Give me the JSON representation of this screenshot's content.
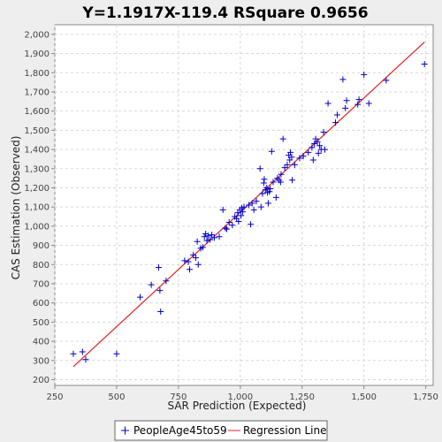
{
  "chart_data": {
    "type": "scatter",
    "title": "Y=1.1917X-119.4    RSquare 0.9656",
    "xlabel": "SAR Prediction (Expected)",
    "ylabel": "CAS Estimation (Observed)",
    "xlim": [
      250,
      1780
    ],
    "ylim": [
      170,
      2050
    ],
    "xticks": [
      250,
      500,
      750,
      1000,
      1250,
      1500,
      1750
    ],
    "xtick_labels": [
      "250",
      "500",
      "750",
      "1,000",
      "1,250",
      "1,500",
      "1,750"
    ],
    "yticks": [
      200,
      300,
      400,
      500,
      600,
      700,
      800,
      900,
      1000,
      1100,
      1200,
      1300,
      1400,
      1500,
      1600,
      1700,
      1800,
      1900,
      2000
    ],
    "ytick_labels": [
      "200",
      "300",
      "400",
      "500",
      "600",
      "700",
      "800",
      "900",
      "1,000",
      "1,100",
      "1,200",
      "1,300",
      "1,400",
      "1,500",
      "1,600",
      "1,700",
      "1,800",
      "1,900",
      "2,000"
    ],
    "grid": true,
    "legend_position": "bottom",
    "series": [
      {
        "name": "PeopleAge45to59",
        "kind": "scatter",
        "marker": "plus",
        "color": "#0000CC",
        "points": [
          [
            325,
            335
          ],
          [
            362,
            345
          ],
          [
            375,
            305
          ],
          [
            500,
            335
          ],
          [
            595,
            630
          ],
          [
            640,
            695
          ],
          [
            670,
            785
          ],
          [
            675,
            665
          ],
          [
            678,
            555
          ],
          [
            700,
            715
          ],
          [
            775,
            820
          ],
          [
            790,
            815
          ],
          [
            795,
            775
          ],
          [
            810,
            850
          ],
          [
            820,
            835
          ],
          [
            826,
            920
          ],
          [
            830,
            800
          ],
          [
            840,
            885
          ],
          [
            848,
            890
          ],
          [
            855,
            945
          ],
          [
            860,
            960
          ],
          [
            865,
            925
          ],
          [
            870,
            950
          ],
          [
            878,
            930
          ],
          [
            885,
            955
          ],
          [
            895,
            940
          ],
          [
            915,
            945
          ],
          [
            930,
            1085
          ],
          [
            940,
            990
          ],
          [
            945,
            985
          ],
          [
            955,
            1020
          ],
          [
            968,
            1005
          ],
          [
            978,
            1050
          ],
          [
            985,
            1040
          ],
          [
            990,
            1070
          ],
          [
            993,
            1025
          ],
          [
            998,
            1085
          ],
          [
            1003,
            1055
          ],
          [
            1006,
            1095
          ],
          [
            1010,
            1075
          ],
          [
            1015,
            1100
          ],
          [
            1035,
            1110
          ],
          [
            1042,
            1010
          ],
          [
            1048,
            1120
          ],
          [
            1055,
            1085
          ],
          [
            1065,
            1130
          ],
          [
            1080,
            1300
          ],
          [
            1084,
            1100
          ],
          [
            1090,
            1170
          ],
          [
            1095,
            1225
          ],
          [
            1097,
            1245
          ],
          [
            1102,
            1190
          ],
          [
            1107,
            1200
          ],
          [
            1110,
            1175
          ],
          [
            1113,
            1120
          ],
          [
            1118,
            1180
          ],
          [
            1121,
            1195
          ],
          [
            1127,
            1390
          ],
          [
            1133,
            1230
          ],
          [
            1145,
            1150
          ],
          [
            1150,
            1250
          ],
          [
            1157,
            1240
          ],
          [
            1163,
            1230
          ],
          [
            1165,
            1270
          ],
          [
            1173,
            1455
          ],
          [
            1180,
            1305
          ],
          [
            1190,
            1320
          ],
          [
            1196,
            1370
          ],
          [
            1200,
            1345
          ],
          [
            1203,
            1385
          ],
          [
            1208,
            1360
          ],
          [
            1210,
            1240
          ],
          [
            1220,
            1320
          ],
          [
            1240,
            1355
          ],
          [
            1255,
            1365
          ],
          [
            1275,
            1385
          ],
          [
            1290,
            1410
          ],
          [
            1295,
            1345
          ],
          [
            1300,
            1430
          ],
          [
            1305,
            1455
          ],
          [
            1312,
            1440
          ],
          [
            1316,
            1380
          ],
          [
            1321,
            1420
          ],
          [
            1327,
            1400
          ],
          [
            1337,
            1490
          ],
          [
            1342,
            1400
          ],
          [
            1355,
            1640
          ],
          [
            1385,
            1540
          ],
          [
            1392,
            1580
          ],
          [
            1415,
            1765
          ],
          [
            1425,
            1615
          ],
          [
            1430,
            1655
          ],
          [
            1475,
            1635
          ],
          [
            1480,
            1660
          ],
          [
            1500,
            1790
          ],
          [
            1520,
            1640
          ],
          [
            1590,
            1760
          ],
          [
            1745,
            1845
          ]
        ]
      },
      {
        "name": "Regression Line",
        "kind": "line",
        "color": "#E02020",
        "slope": 1.1917,
        "intercept": -119.4,
        "x_range": [
          325,
          1745
        ]
      }
    ]
  }
}
